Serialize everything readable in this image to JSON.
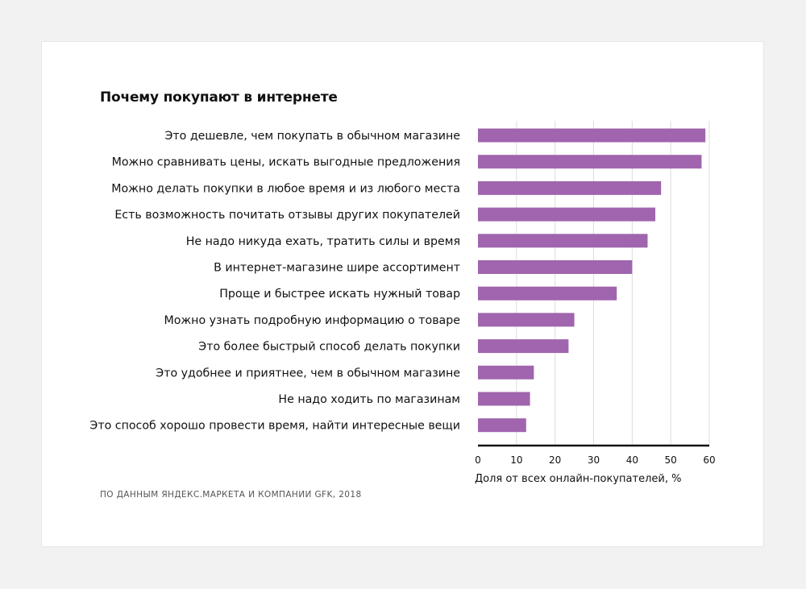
{
  "title": "Почему покупают в интернете",
  "source": "ПО ДАННЫМ ЯНДЕКС.МАРКЕТА И КОМПАНИИ GFK, 2018",
  "colors": {
    "bar": "#a065ae",
    "grid": "#dcdcdc",
    "axis": "#111111",
    "background": "#f2f2f2",
    "card": "#ffffff"
  },
  "chart_data": {
    "type": "bar",
    "orientation": "horizontal",
    "title": "Почему покупают в интернете",
    "xlabel": "Доля от всех онлайн-покупателей, %",
    "ylabel": "",
    "xlim": [
      0,
      60
    ],
    "xticks": [
      "0",
      "10",
      "20",
      "30",
      "40",
      "50",
      "60"
    ],
    "grid": "vertical",
    "categories": [
      "Это дешевле, чем покупать в обычном магазине",
      "Можно сравнивать цены, искать выгодные предложения",
      "Можно делать покупки в любое время и из любого места",
      "Есть возможность почитать отзывы других покупателей",
      "Не надо никуда ехать, тратить силы и время",
      "В интернет-магазине шире ассортимент",
      "Проще и быстрее искать нужный товар",
      "Можно узнать подробную информацию о товаре",
      "Это более быстрый способ делать покупки",
      "Это удобнее и приятнее, чем в обычном магазине",
      "Не надо ходить по магазинам",
      "Это способ хорошо провести время, найти интересные вещи"
    ],
    "values": [
      59,
      58,
      47.5,
      46,
      44,
      40,
      36,
      25,
      23.5,
      14.5,
      13.5,
      12.5
    ]
  }
}
